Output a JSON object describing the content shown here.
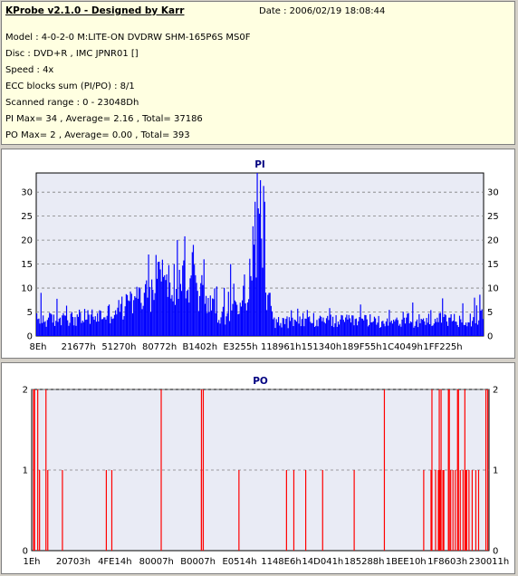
{
  "header": {
    "title": "KProbe v2.1.0 - Designed by Karr",
    "date": "Date : 2006/02/19 18:08:44",
    "lines": [
      "Model : 4-0-2-0 M:LITE-ON DVDRW SHM-165P6S MS0F",
      "Disc : DVD+R , IMC JPNR01 []",
      "Speed : 4x",
      "ECC blocks sum (PI/PO) : 8/1",
      "Scanned range : 0 - 23048Dh",
      "PI Max= 34 , Average= 2.16 , Total= 37186",
      "PO Max= 2 , Average= 0.00 , Total= 393"
    ]
  },
  "chart_data": [
    {
      "type": "bar",
      "title": "PI",
      "ylim": [
        0,
        34
      ],
      "yticks": [
        0,
        5,
        10,
        15,
        20,
        25,
        30
      ],
      "xticks": [
        "8Eh",
        "21677h",
        "51270h",
        "80772h",
        "B1402h",
        "E3255h",
        "118961h",
        "151340h",
        "189F55h",
        "1C4049h",
        "1FF225h"
      ],
      "grid": true,
      "color": "#0000ff",
      "profile": [
        [
          0,
          3.5
        ],
        [
          0.06,
          3.6
        ],
        [
          0.15,
          4.5
        ],
        [
          0.2,
          6.5
        ],
        [
          0.25,
          9.5
        ],
        [
          0.28,
          11
        ],
        [
          0.32,
          11.5
        ],
        [
          0.35,
          11
        ],
        [
          0.38,
          8.5
        ],
        [
          0.4,
          5.5
        ],
        [
          0.43,
          4.5
        ],
        [
          0.455,
          6
        ],
        [
          0.47,
          10
        ],
        [
          0.48,
          15
        ],
        [
          0.49,
          20
        ],
        [
          0.495,
          22
        ],
        [
          0.505,
          17
        ],
        [
          0.515,
          11
        ],
        [
          0.525,
          6
        ],
        [
          0.535,
          3
        ],
        [
          0.6,
          3
        ],
        [
          0.7,
          3.2
        ],
        [
          0.8,
          3.4
        ],
        [
          0.9,
          3.5
        ],
        [
          1.0,
          4
        ]
      ],
      "peaks": [
        [
          0.01,
          9
        ],
        [
          0.25,
          17
        ],
        [
          0.275,
          15.5
        ],
        [
          0.315,
          20
        ],
        [
          0.35,
          19
        ],
        [
          0.375,
          16
        ],
        [
          0.435,
          15
        ],
        [
          0.49,
          28
        ],
        [
          0.5,
          34
        ],
        [
          0.502,
          32.5
        ],
        [
          0.51,
          28
        ],
        [
          0.98,
          8
        ]
      ]
    },
    {
      "type": "bar",
      "title": "PO",
      "ylim": [
        0,
        2
      ],
      "yticks": [
        0,
        1,
        2
      ],
      "xticks": [
        "1Eh",
        "20703h",
        "4FE14h",
        "80007h",
        "B0007h",
        "E0514h",
        "1148E6h",
        "14D041h",
        "185288h",
        "1BEE10h",
        "1F8603h",
        "230011h"
      ],
      "grid": true,
      "color": "#ff0000",
      "ones": [
        0.016,
        0.034,
        0.066,
        0.162,
        0.174,
        0.37,
        0.452,
        0.556,
        0.572,
        0.598,
        0.635,
        0.704,
        0.856,
        0.872,
        0.882,
        0.888,
        0.892,
        0.898,
        0.9,
        0.915,
        0.92,
        0.925,
        0.936,
        0.942,
        0.948,
        0.95,
        0.955,
        0.962,
        0.97,
        0.976
      ],
      "twos": [
        0.003,
        0.005,
        0.012,
        0.03,
        0.282,
        0.37,
        0.374,
        0.77,
        0.874,
        0.89,
        0.894,
        0.91,
        0.912,
        0.93,
        0.932,
        0.946,
        0.992,
        0.996
      ]
    }
  ]
}
